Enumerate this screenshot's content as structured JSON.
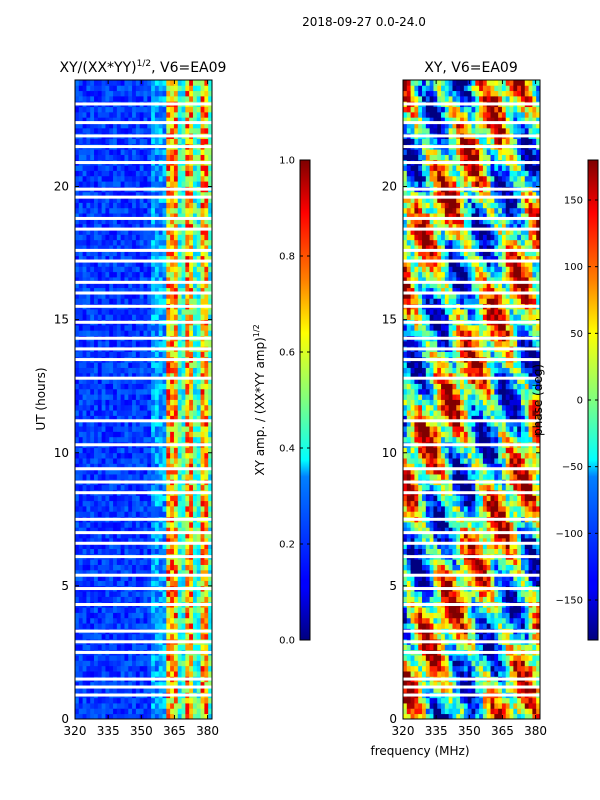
{
  "figure": {
    "suptitle": "2018-09-27 0.0-24.0",
    "shared_xlabel": "frequency (MHz)"
  },
  "chart_data": [
    {
      "type": "heatmap",
      "title_prefix": "XY/(XX*YY)",
      "title_exponent": "1/2",
      "title_suffix": ", V6=EA09",
      "xlabel": "frequency (MHz)",
      "ylabel": "UT (hours)",
      "xlim": [
        320,
        382
      ],
      "ylim": [
        0,
        24
      ],
      "xticks": [
        320,
        335,
        350,
        365,
        380
      ],
      "yticks": [
        0,
        5,
        10,
        15,
        20
      ],
      "colormap": "jet",
      "colorbar": {
        "label_prefix": "XY amp. / (XX*YY amp)",
        "label_exponent": "1/2",
        "range": [
          0.0,
          1.0
        ],
        "ticks": [
          0.0,
          0.2,
          0.4,
          0.6,
          0.8,
          1.0
        ],
        "tick_labels": [
          "0.0",
          "0.2",
          "0.4",
          "0.6",
          "0.8",
          "1.0"
        ]
      }
    },
    {
      "type": "heatmap",
      "title": "XY, V6=EA09",
      "xlabel": "frequency (MHz)",
      "xlim": [
        320,
        382
      ],
      "ylim": [
        0,
        24
      ],
      "xticks": [
        320,
        335,
        350,
        365,
        380
      ],
      "yticks": [
        0,
        5,
        10,
        15,
        20
      ],
      "colormap": "jet",
      "colorbar": {
        "label": "phase (deg)",
        "range": [
          -180,
          180
        ],
        "ticks": [
          -150,
          -100,
          -50,
          0,
          50,
          100,
          150
        ],
        "tick_labels": [
          "−150",
          "−100",
          "−50",
          "0",
          "50",
          "100",
          "150"
        ]
      }
    }
  ]
}
